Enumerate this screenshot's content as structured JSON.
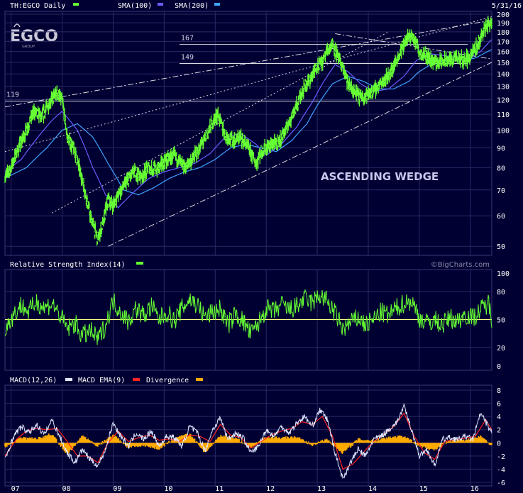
{
  "header": {
    "symbol": "TH:EGCO Daily",
    "sma1": "SMA(100)",
    "sma2": "SMA(200)",
    "date": "5/31/16",
    "logo_text": "EGCO",
    "logo_sub": "GROUP"
  },
  "colors": {
    "background": "#000033",
    "grid": "#2a2a66",
    "price": "#66ff33",
    "sma100": "#6a5cff",
    "sma200": "#3fa2ff",
    "rsi": "#66ff33",
    "macd": "#dfe6ff",
    "macd_ema": "#ff2222",
    "divergence": "#ffaa00",
    "text": "#ffffff",
    "watermark": "#8888aa"
  },
  "chart_data": [
    {
      "type": "line",
      "name": "price",
      "title": "TH:EGCO Daily",
      "yscale": "log",
      "ylim": [
        49,
        200
      ],
      "yticks": [
        200,
        190,
        180,
        170,
        160,
        150,
        140,
        130,
        120,
        110,
        100,
        90,
        80,
        70,
        60,
        50
      ],
      "xticks": [
        "07",
        "08",
        "09",
        "10",
        "11",
        "12",
        "13",
        "14",
        "15",
        "16"
      ],
      "x_range": [
        2006.88,
        2016.42
      ],
      "levels": [
        {
          "label": "167",
          "value": 167,
          "from": 2010.3,
          "to": 2015.95
        },
        {
          "label": "149",
          "value": 149,
          "from": 2010.3,
          "to": 2015.95
        },
        {
          "label": "119",
          "value": 119,
          "from": 2006.88,
          "to": 2014.8
        }
      ],
      "annotation": "ASCENDING WEDGE",
      "trendlines": [
        {
          "style": "dashdot",
          "from": [
            2006.88,
            115
          ],
          "to": [
            2016.42,
            193
          ]
        },
        {
          "style": "dotted",
          "from": [
            2006.88,
            88
          ],
          "to": [
            2016.42,
            197
          ]
        },
        {
          "style": "dotted",
          "from": [
            2007.8,
            61
          ],
          "to": [
            2014.4,
            180
          ]
        },
        {
          "style": "dashdot",
          "from": [
            2008.9,
            50
          ],
          "to": [
            2016.42,
            150
          ]
        },
        {
          "style": "dashdot",
          "from": [
            2013.35,
            178
          ],
          "to": [
            2016.42,
            153
          ]
        }
      ],
      "series": [
        {
          "name": "Price",
          "x": [
            2006.88,
            2007.0,
            2007.15,
            2007.3,
            2007.45,
            2007.6,
            2007.75,
            2007.9,
            2008.0,
            2008.1,
            2008.25,
            2008.4,
            2008.55,
            2008.7,
            2008.8,
            2008.9,
            2009.0,
            2009.1,
            2009.25,
            2009.4,
            2009.55,
            2009.7,
            2009.85,
            2010.0,
            2010.2,
            2010.4,
            2010.55,
            2010.7,
            2010.85,
            2010.95,
            2011.05,
            2011.2,
            2011.35,
            2011.5,
            2011.65,
            2011.8,
            2011.9,
            2012.0,
            2012.15,
            2012.3,
            2012.45,
            2012.6,
            2012.75,
            2012.9,
            2013.0,
            2013.1,
            2013.2,
            2013.3,
            2013.4,
            2013.5,
            2013.6,
            2013.7,
            2013.85,
            2014.0,
            2014.15,
            2014.3,
            2014.45,
            2014.6,
            2014.72,
            2014.85,
            2014.95,
            2015.0,
            2015.1,
            2015.25,
            2015.4,
            2015.55,
            2015.7,
            2015.85,
            2016.0,
            2016.15,
            2016.3,
            2016.42
          ],
          "values": [
            76,
            80,
            90,
            100,
            112,
            108,
            118,
            125,
            120,
            96,
            88,
            74,
            60,
            52,
            57,
            66,
            64,
            68,
            73,
            78,
            76,
            80,
            79,
            83,
            86,
            80,
            84,
            90,
            98,
            105,
            110,
            97,
            94,
            96,
            90,
            82,
            88,
            90,
            92,
            95,
            105,
            116,
            130,
            138,
            148,
            150,
            162,
            168,
            155,
            145,
            132,
            126,
            122,
            124,
            128,
            135,
            142,
            156,
            170,
            176,
            168,
            160,
            158,
            152,
            150,
            152,
            154,
            152,
            155,
            168,
            185,
            192
          ]
        },
        {
          "name": "SMA(100)",
          "x": [
            2006.88,
            2007.2,
            2007.5,
            2007.8,
            2008.0,
            2008.3,
            2008.6,
            2008.85,
            2009.1,
            2009.4,
            2009.7,
            2010.0,
            2010.3,
            2010.6,
            2010.9,
            2011.2,
            2011.5,
            2011.8,
            2012.0,
            2012.3,
            2012.6,
            2012.9,
            2013.1,
            2013.35,
            2013.6,
            2013.85,
            2014.1,
            2014.4,
            2014.7,
            2014.95,
            2015.2,
            2015.5,
            2015.8,
            2016.0,
            2016.2,
            2016.42
          ],
          "values": [
            78,
            84,
            95,
            106,
            112,
            100,
            80,
            68,
            63,
            69,
            75,
            78,
            80,
            82,
            87,
            96,
            98,
            92,
            86,
            92,
            102,
            118,
            132,
            148,
            142,
            132,
            126,
            128,
            138,
            152,
            158,
            156,
            154,
            154,
            160,
            172
          ]
        },
        {
          "name": "SMA(200)",
          "x": [
            2006.88,
            2007.3,
            2007.7,
            2008.0,
            2008.3,
            2008.6,
            2008.9,
            2009.2,
            2009.5,
            2009.8,
            2010.1,
            2010.4,
            2010.7,
            2011.0,
            2011.3,
            2011.6,
            2011.9,
            2012.2,
            2012.5,
            2012.8,
            2013.0,
            2013.3,
            2013.6,
            2013.9,
            2014.2,
            2014.5,
            2014.8,
            2015.0,
            2015.3,
            2015.6,
            2015.9,
            2016.1,
            2016.42
          ],
          "values": [
            75,
            80,
            90,
            100,
            104,
            96,
            82,
            70,
            68,
            71,
            75,
            78,
            80,
            84,
            90,
            92,
            90,
            88,
            94,
            104,
            116,
            132,
            138,
            134,
            128,
            128,
            134,
            142,
            150,
            152,
            152,
            154,
            162
          ]
        }
      ]
    },
    {
      "type": "line",
      "name": "rsi",
      "title": "Relative Strength Index(14)",
      "ylim": [
        0,
        100
      ],
      "yticks": [
        100,
        80,
        50,
        20,
        0
      ],
      "reference_line": 50,
      "x_range": [
        2006.88,
        2016.42
      ],
      "series": [
        {
          "name": "RSI",
          "x": [
            2006.88,
            2007.05,
            2007.2,
            2007.35,
            2007.5,
            2007.65,
            2007.8,
            2007.95,
            2008.1,
            2008.25,
            2008.4,
            2008.55,
            2008.7,
            2008.85,
            2009.0,
            2009.15,
            2009.3,
            2009.45,
            2009.6,
            2009.75,
            2009.9,
            2010.05,
            2010.2,
            2010.35,
            2010.5,
            2010.65,
            2010.8,
            2010.95,
            2011.1,
            2011.25,
            2011.4,
            2011.55,
            2011.7,
            2011.85,
            2012.0,
            2012.15,
            2012.3,
            2012.45,
            2012.6,
            2012.75,
            2012.9,
            2013.05,
            2013.2,
            2013.35,
            2013.5,
            2013.65,
            2013.8,
            2013.95,
            2014.1,
            2014.25,
            2014.4,
            2014.55,
            2014.7,
            2014.85,
            2015.0,
            2015.15,
            2015.3,
            2015.45,
            2015.6,
            2015.75,
            2015.9,
            2016.05,
            2016.2,
            2016.35,
            2016.42
          ],
          "values": [
            42,
            55,
            66,
            58,
            70,
            62,
            68,
            55,
            40,
            46,
            32,
            38,
            28,
            44,
            70,
            58,
            48,
            62,
            54,
            64,
            50,
            58,
            48,
            62,
            72,
            66,
            52,
            58,
            62,
            44,
            56,
            48,
            34,
            46,
            62,
            58,
            66,
            60,
            64,
            72,
            68,
            76,
            70,
            56,
            40,
            46,
            52,
            44,
            50,
            58,
            54,
            62,
            68,
            70,
            52,
            46,
            50,
            44,
            52,
            48,
            56,
            52,
            60,
            68,
            52
          ]
        }
      ]
    },
    {
      "type": "line",
      "name": "macd",
      "title": "MACD(12,26)",
      "ylim": [
        -6,
        8
      ],
      "yticks": [
        8,
        6,
        4,
        2,
        0,
        -2,
        -4,
        -6
      ],
      "x_range": [
        2006.88,
        2016.42
      ],
      "legend": [
        "MACD(12,26)",
        "MACD EMA(9)",
        "Divergence"
      ],
      "series": [
        {
          "name": "MACD(12,26)",
          "x": [
            2006.88,
            2007.05,
            2007.2,
            2007.35,
            2007.5,
            2007.65,
            2007.8,
            2007.95,
            2008.1,
            2008.25,
            2008.4,
            2008.55,
            2008.7,
            2008.85,
            2009.0,
            2009.15,
            2009.3,
            2009.45,
            2009.6,
            2009.75,
            2009.9,
            2010.05,
            2010.2,
            2010.35,
            2010.5,
            2010.65,
            2010.8,
            2010.95,
            2011.1,
            2011.25,
            2011.4,
            2011.55,
            2011.7,
            2011.85,
            2012.0,
            2012.15,
            2012.3,
            2012.45,
            2012.6,
            2012.75,
            2012.9,
            2013.05,
            2013.2,
            2013.35,
            2013.5,
            2013.65,
            2013.8,
            2013.95,
            2014.1,
            2014.25,
            2014.4,
            2014.55,
            2014.7,
            2014.85,
            2015.0,
            2015.15,
            2015.3,
            2015.45,
            2015.6,
            2015.75,
            2015.9,
            2016.05,
            2016.2,
            2016.35,
            2016.42
          ],
          "values": [
            -2.5,
            1.0,
            2.5,
            1.5,
            2.8,
            1.2,
            3.5,
            1.0,
            -1.5,
            -3.0,
            -1.0,
            -2.5,
            -3.5,
            -1.0,
            3.0,
            1.0,
            -0.5,
            1.5,
            0.5,
            1.8,
            -0.5,
            1.0,
            0.8,
            -0.5,
            2.5,
            1.5,
            -1.2,
            2.0,
            3.8,
            0.5,
            1.5,
            0.8,
            -1.5,
            -0.5,
            2.0,
            1.0,
            2.5,
            1.5,
            3.0,
            4.0,
            2.5,
            5.0,
            3.5,
            -1.5,
            -5.5,
            -3.0,
            -1.0,
            -2.0,
            0.5,
            1.0,
            2.0,
            3.0,
            5.5,
            2.0,
            -2.0,
            -1.0,
            -3.5,
            0.5,
            0.8,
            0.5,
            1.0,
            0.5,
            4.5,
            2.5,
            1.5
          ]
        },
        {
          "name": "MACD EMA(9)",
          "x": [
            2006.88,
            2007.1,
            2007.3,
            2007.5,
            2007.7,
            2007.9,
            2008.1,
            2008.3,
            2008.5,
            2008.7,
            2008.9,
            2009.1,
            2009.3,
            2009.5,
            2009.7,
            2009.9,
            2010.1,
            2010.3,
            2010.5,
            2010.7,
            2010.9,
            2011.1,
            2011.3,
            2011.5,
            2011.7,
            2011.9,
            2012.1,
            2012.3,
            2012.5,
            2012.7,
            2012.9,
            2013.1,
            2013.3,
            2013.5,
            2013.7,
            2013.9,
            2014.1,
            2014.3,
            2014.5,
            2014.7,
            2014.9,
            2015.1,
            2015.3,
            2015.5,
            2015.7,
            2015.9,
            2016.1,
            2016.3,
            2016.42
          ],
          "values": [
            -2.0,
            0.5,
            1.8,
            2.2,
            2.0,
            2.2,
            0.2,
            -2.0,
            -2.0,
            -3.0,
            0.0,
            1.8,
            0.2,
            0.8,
            1.2,
            0.4,
            0.6,
            0.2,
            1.2,
            1.0,
            0.2,
            2.8,
            1.2,
            0.8,
            -0.8,
            0.2,
            1.2,
            1.8,
            2.2,
            3.2,
            2.8,
            4.0,
            1.0,
            -4.0,
            -3.2,
            -1.5,
            0.2,
            1.2,
            2.5,
            4.5,
            1.0,
            -1.5,
            -2.5,
            0.2,
            0.5,
            0.7,
            1.0,
            3.5,
            2.0
          ]
        },
        {
          "name": "Divergence",
          "x": [
            2006.88,
            2007.2,
            2007.5,
            2007.8,
            2008.1,
            2008.4,
            2008.7,
            2009.0,
            2009.3,
            2009.6,
            2009.9,
            2010.2,
            2010.5,
            2010.8,
            2011.1,
            2011.4,
            2011.7,
            2012.0,
            2012.3,
            2012.6,
            2012.9,
            2013.2,
            2013.5,
            2013.8,
            2014.1,
            2014.4,
            2014.7,
            2015.0,
            2015.3,
            2015.6,
            2015.9,
            2016.2,
            2016.42
          ],
          "values": [
            -0.5,
            0.7,
            0.6,
            1.3,
            -1.7,
            1.0,
            -0.5,
            1.2,
            -0.7,
            -0.3,
            -0.9,
            0.6,
            1.3,
            -1.4,
            1.0,
            0.7,
            -0.7,
            0.8,
            0.7,
            0.8,
            -0.3,
            0.5,
            -1.5,
            0.5,
            0.3,
            0.8,
            1.0,
            -0.5,
            -1.0,
            0.3,
            0.3,
            1.0,
            -0.5
          ]
        }
      ]
    }
  ]
}
